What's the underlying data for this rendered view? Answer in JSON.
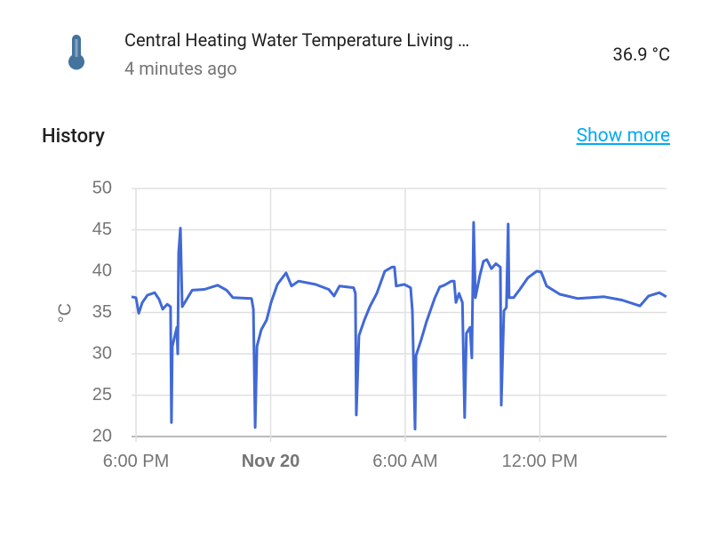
{
  "header": {
    "name": "Central Heating Water Temperature Living …",
    "last_changed": "4 minutes ago",
    "state": "36.9 °C"
  },
  "history": {
    "title": "History",
    "link": "Show more"
  },
  "chart_data": {
    "type": "line",
    "ylabel": "°C",
    "color": "#4169d6",
    "ylim": [
      20,
      50
    ],
    "yticks": [
      20,
      25,
      30,
      35,
      40,
      45,
      50
    ],
    "xlim": [
      -0.2,
      23.65
    ],
    "xticks": [
      {
        "value": 0,
        "label": "6:00 PM"
      },
      {
        "value": 6,
        "label": "Nov 20"
      },
      {
        "value": 12,
        "label": "6:00 AM"
      },
      {
        "value": 18,
        "label": "12:00 PM"
      }
    ],
    "grid": true,
    "x": [
      -0.2,
      0,
      0.12,
      0.28,
      0.51,
      0.83,
      1.03,
      1.19,
      1.39,
      1.54,
      1.58,
      1.62,
      1.82,
      1.86,
      1.9,
      1.98,
      2.06,
      2.26,
      2.5,
      3.05,
      3.64,
      4.04,
      4.32,
      5.15,
      5.23,
      5.31,
      5.39,
      5.58,
      5.82,
      6.02,
      6.3,
      6.69,
      6.93,
      7.25,
      8.0,
      8.59,
      8.83,
      9.07,
      9.7,
      9.78,
      9.82,
      9.94,
      10.18,
      10.42,
      10.73,
      11.09,
      11.41,
      11.52,
      11.6,
      11.96,
      12.24,
      12.32,
      12.44,
      12.48,
      12.71,
      12.95,
      13.31,
      13.54,
      13.74,
      14.06,
      14.18,
      14.26,
      14.4,
      14.55,
      14.65,
      14.73,
      14.89,
      14.97,
      15.05,
      15.13,
      15.33,
      15.49,
      15.64,
      15.84,
      16.04,
      16.24,
      16.28,
      16.4,
      16.51,
      16.59,
      16.63,
      16.83,
      17.11,
      17.47,
      17.86,
      18.06,
      18.3,
      18.89,
      19.68,
      20.87,
      21.66,
      22.46,
      22.85,
      23.33,
      23.64
    ],
    "series": [
      {
        "values": [
          36.9,
          36.8,
          34.9,
          36.2,
          37.1,
          37.4,
          36.6,
          35.4,
          36.0,
          35.7,
          21.7,
          30.9,
          33.2,
          30.0,
          42.2,
          45.2,
          35.7,
          36.6,
          37.7,
          37.8,
          38.3,
          37.7,
          36.8,
          36.7,
          35.4,
          21.1,
          30.9,
          32.9,
          34.1,
          36.2,
          38.4,
          39.8,
          38.2,
          38.8,
          38.4,
          37.8,
          37.0,
          38.2,
          38.0,
          37.3,
          22.6,
          32.2,
          34.1,
          35.7,
          37.3,
          40.0,
          40.5,
          40.5,
          38.2,
          38.4,
          38.0,
          35.2,
          20.9,
          29.8,
          31.7,
          33.9,
          36.7,
          38.1,
          38.3,
          38.8,
          38.8,
          36.2,
          37.3,
          36.2,
          22.3,
          32.5,
          33.2,
          29.5,
          45.9,
          36.8,
          39.5,
          41.2,
          41.4,
          40.3,
          40.9,
          40.5,
          23.8,
          35.2,
          35.6,
          45.7,
          36.8,
          36.8,
          37.8,
          39.2,
          40.0,
          39.9,
          38.2,
          37.2,
          36.7,
          36.9,
          36.5,
          35.8,
          37.0,
          37.4,
          36.9
        ]
      }
    ]
  }
}
